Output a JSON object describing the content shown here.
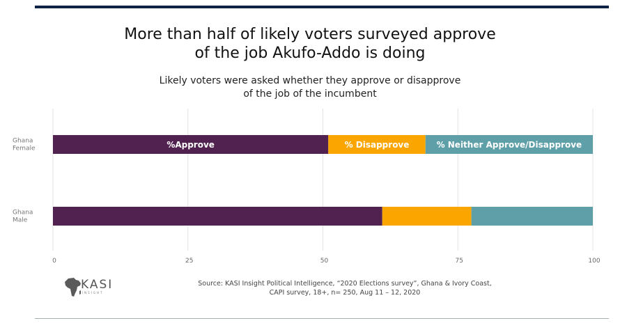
{
  "header": {
    "title_lines": [
      "More than half of likely voters surveyed approve",
      "of the job Akufo-Addo is doing"
    ],
    "subtitle_lines": [
      "Likely voters were asked whether they approve or disapprove",
      "of the job of the incumbent"
    ]
  },
  "chart_data": {
    "type": "bar",
    "orientation": "horizontal",
    "stacked": true,
    "categories": [
      "Ghana Female",
      "Ghana Male"
    ],
    "category_label_lines": [
      [
        "Ghana",
        "Female"
      ],
      [
        "Ghana",
        "Male"
      ]
    ],
    "series": [
      {
        "name": "%Approve",
        "values": [
          51,
          61
        ],
        "color": "#51214f"
      },
      {
        "name": "% Disapprove",
        "values": [
          18,
          16.5
        ],
        "color": "#fba600"
      },
      {
        "name": "% Neither Approve/Disapprove",
        "values": [
          31,
          22.5
        ],
        "color": "#5f9fa8"
      }
    ],
    "xlim": [
      0,
      100
    ],
    "xticks": [
      "0",
      "25",
      "50",
      "75",
      "100"
    ],
    "grid": true,
    "legend": "series labels inside first bar"
  },
  "footer": {
    "source_lines": [
      "Source: KASI Insight Political Intelligence, “2020 Elections survey”, Ghana & Ivory Coast,",
      "CAPI survey, 18+, n= 250, Aug 11 – 12, 2020"
    ],
    "logo_text": "KASI",
    "logo_subtext": "INSIGHT"
  }
}
